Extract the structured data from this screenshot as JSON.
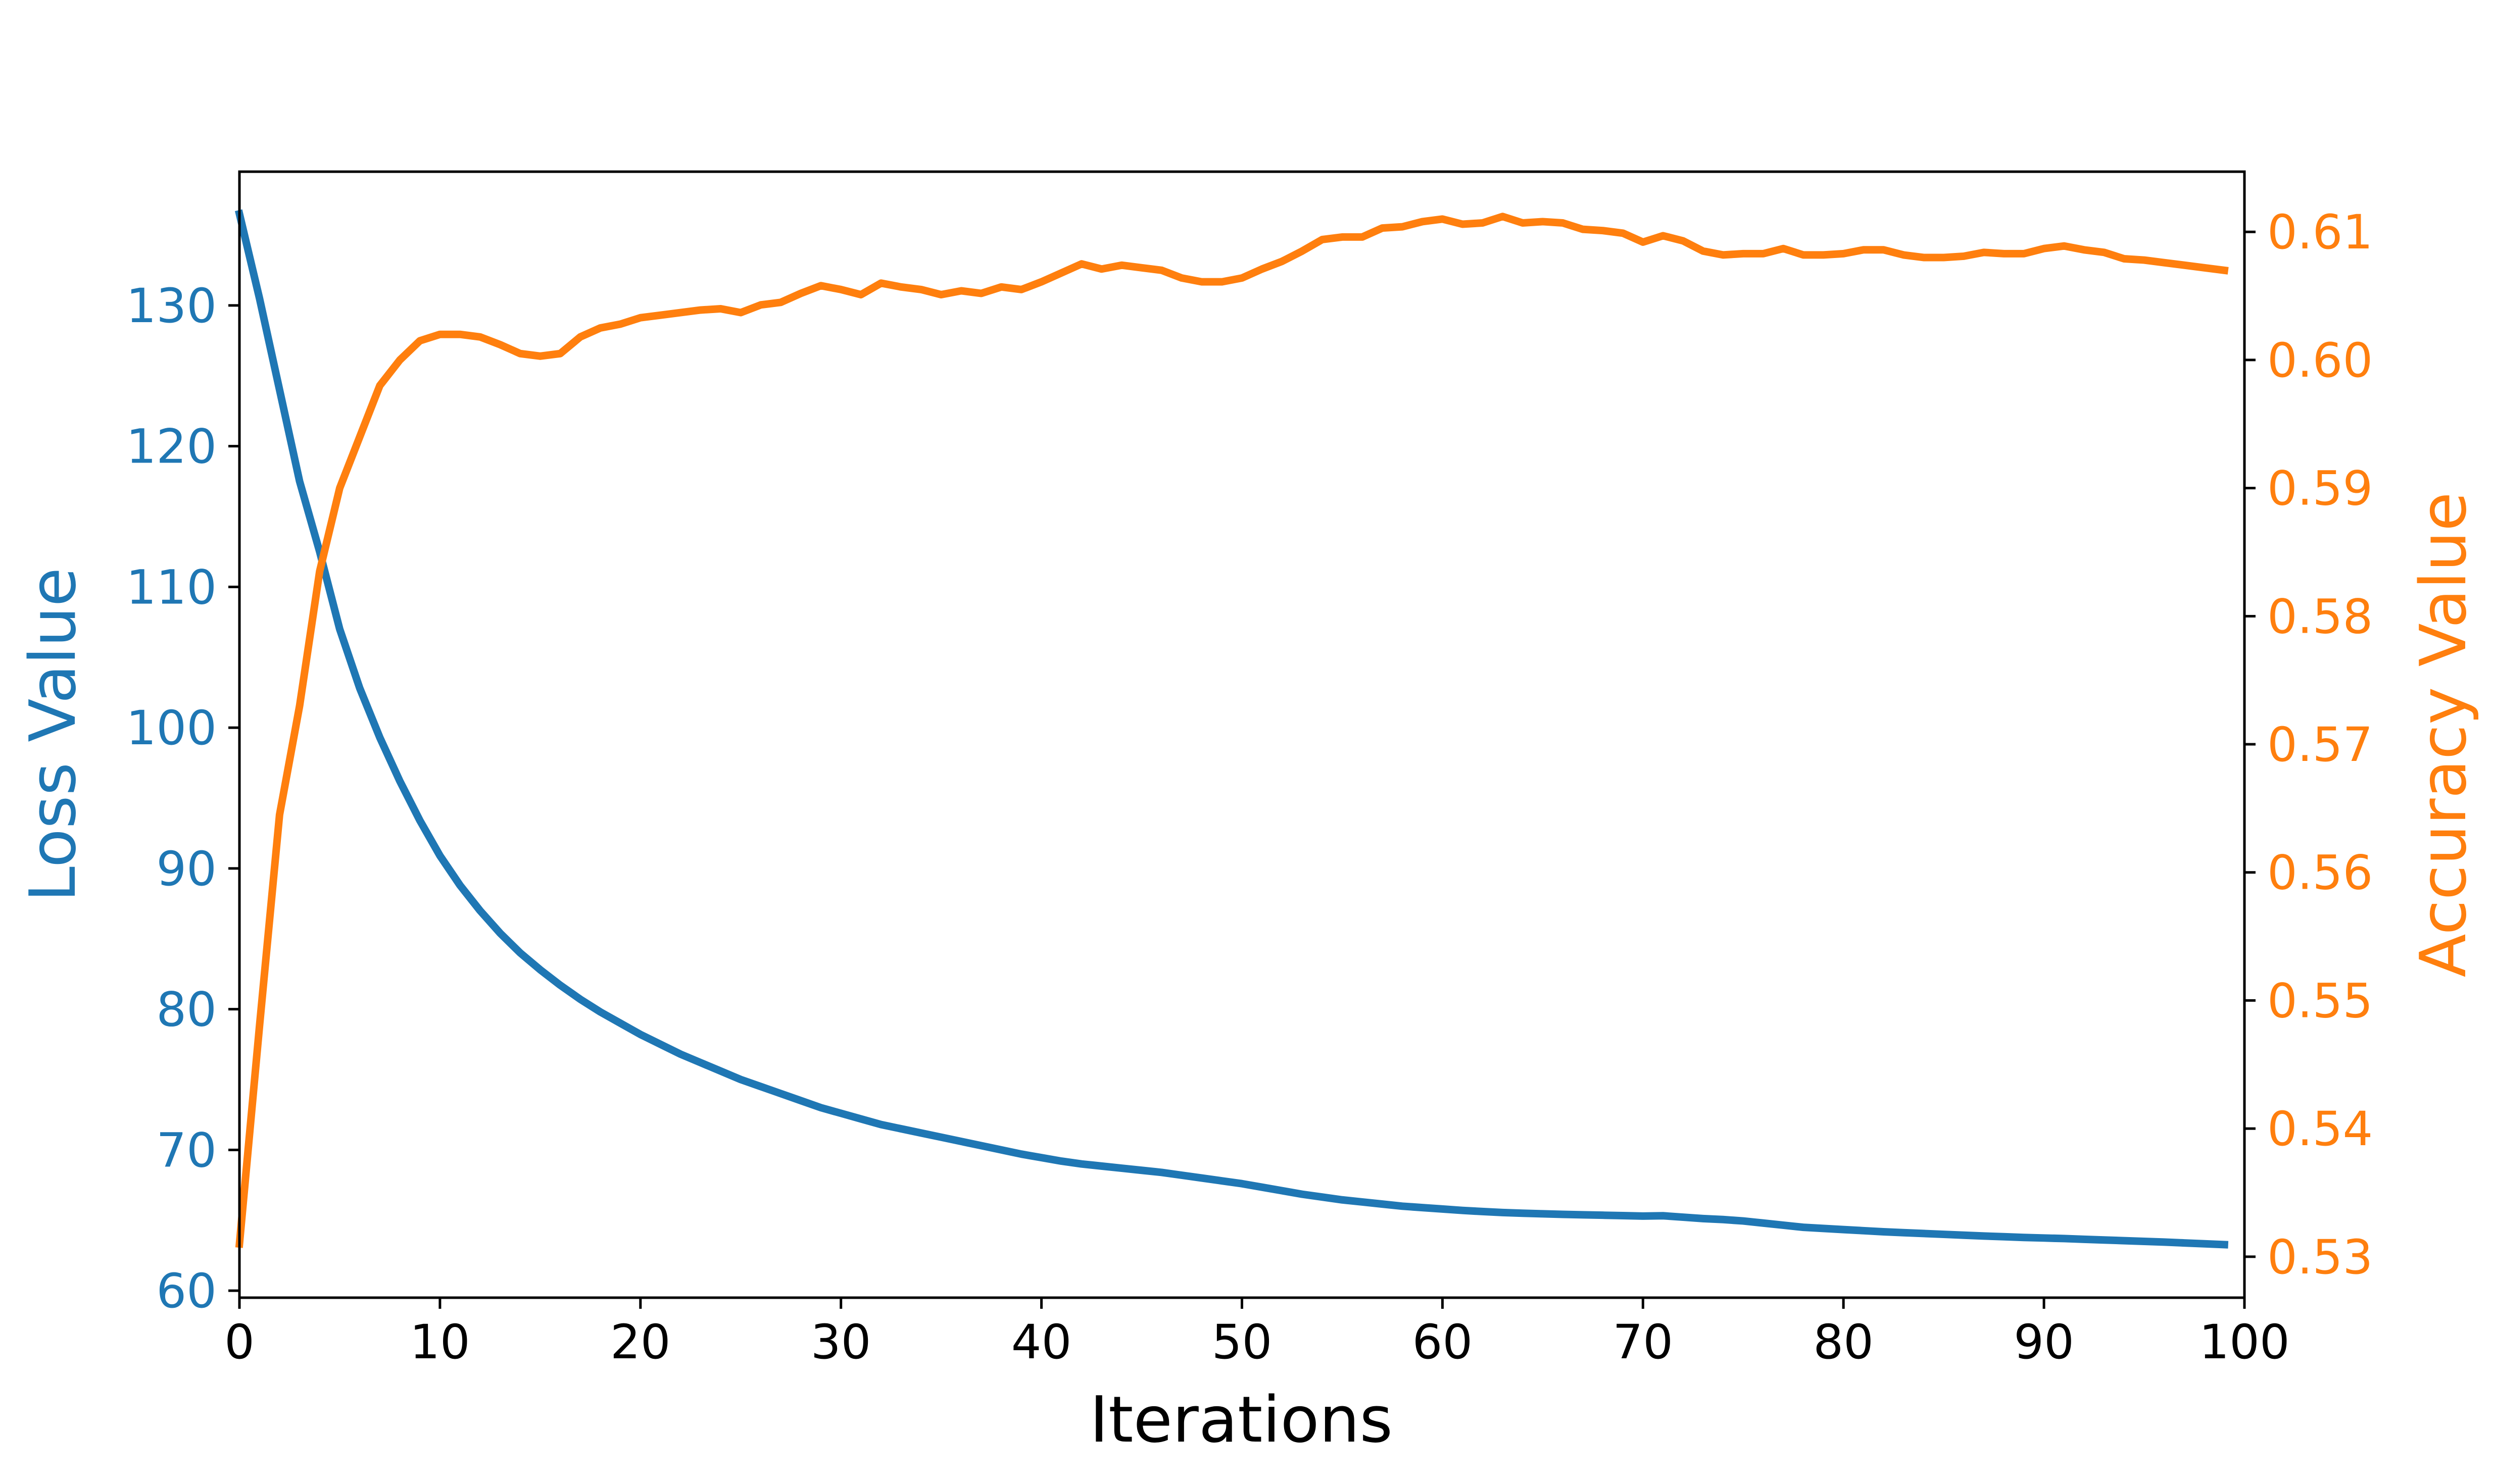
{
  "chart_data": {
    "type": "line",
    "title": "",
    "xlabel": "Iterations",
    "ylabel_left": "Loss Value",
    "ylabel_right": "Accuracy Value",
    "xlim": [
      0,
      100
    ],
    "ylim_left": [
      59.5,
      139.5
    ],
    "ylim_right": [
      0.5268,
      0.6147
    ],
    "x_ticks": [
      0,
      10,
      20,
      30,
      40,
      50,
      60,
      70,
      80,
      90,
      100
    ],
    "y_ticks_left": [
      60,
      70,
      80,
      90,
      100,
      110,
      120,
      130
    ],
    "y_ticks_right": [
      0.53,
      0.54,
      0.55,
      0.56,
      0.57,
      0.58,
      0.59,
      0.6,
      0.61
    ],
    "y_tick_labels_right": [
      "0.53",
      "0.54",
      "0.55",
      "0.56",
      "0.57",
      "0.58",
      "0.59",
      "0.60",
      "0.61"
    ],
    "grid": false,
    "legend": null,
    "colors": {
      "loss": "#1f77b4",
      "accuracy": "#ff7f0e",
      "axis": "#000000"
    },
    "series": [
      {
        "axis": "left",
        "color": "#1f77b4",
        "x": [
          0,
          1,
          2,
          3,
          4,
          5,
          6,
          7,
          8,
          9,
          10,
          11,
          12,
          13,
          14,
          15,
          16,
          17,
          18,
          19,
          20,
          21,
          22,
          23,
          24,
          25,
          26,
          27,
          28,
          29,
          30,
          31,
          32,
          33,
          34,
          35,
          36,
          37,
          38,
          39,
          40,
          41,
          42,
          43,
          44,
          45,
          46,
          47,
          48,
          49,
          50,
          51,
          52,
          53,
          54,
          55,
          56,
          57,
          58,
          59,
          60,
          61,
          62,
          63,
          64,
          65,
          66,
          67,
          68,
          69,
          70,
          71,
          72,
          73,
          74,
          75,
          76,
          77,
          78,
          79,
          80,
          81,
          82,
          83,
          84,
          85,
          86,
          87,
          88,
          89,
          90,
          91,
          92,
          93,
          94,
          95,
          96,
          97,
          98,
          99
        ],
        "values": [
          136.5,
          130.5,
          124.0,
          117.5,
          112.5,
          107.0,
          102.8,
          99.3,
          96.2,
          93.4,
          90.9,
          88.8,
          87.0,
          85.4,
          84.0,
          82.8,
          81.7,
          80.7,
          79.8,
          79.0,
          78.2,
          77.5,
          76.8,
          76.2,
          75.6,
          75.0,
          74.5,
          74.0,
          73.5,
          73.0,
          72.6,
          72.2,
          71.8,
          71.5,
          71.2,
          70.9,
          70.6,
          70.3,
          70.0,
          69.7,
          69.45,
          69.2,
          69.0,
          68.85,
          68.7,
          68.55,
          68.4,
          68.2,
          68.0,
          67.8,
          67.6,
          67.35,
          67.1,
          66.85,
          66.65,
          66.45,
          66.3,
          66.15,
          66.0,
          65.9,
          65.8,
          65.7,
          65.62,
          65.55,
          65.5,
          65.46,
          65.42,
          65.39,
          65.36,
          65.33,
          65.3,
          65.32,
          65.22,
          65.12,
          65.05,
          64.95,
          64.8,
          64.65,
          64.5,
          64.42,
          64.34,
          64.26,
          64.18,
          64.12,
          64.06,
          64.0,
          63.94,
          63.88,
          63.83,
          63.78,
          63.74,
          63.7,
          63.65,
          63.6,
          63.55,
          63.5,
          63.45,
          63.39,
          63.33,
          63.27
        ]
      },
      {
        "axis": "right",
        "color": "#ff7f0e",
        "x": [
          0,
          1,
          2,
          3,
          4,
          5,
          6,
          7,
          8,
          9,
          10,
          11,
          12,
          13,
          14,
          15,
          16,
          17,
          18,
          19,
          20,
          21,
          22,
          23,
          24,
          25,
          26,
          27,
          28,
          29,
          30,
          31,
          32,
          33,
          34,
          35,
          36,
          37,
          38,
          39,
          40,
          41,
          42,
          43,
          44,
          45,
          46,
          47,
          48,
          49,
          50,
          51,
          52,
          53,
          54,
          55,
          56,
          57,
          58,
          59,
          60,
          61,
          62,
          63,
          64,
          65,
          66,
          67,
          68,
          69,
          70,
          71,
          72,
          73,
          74,
          75,
          76,
          77,
          78,
          79,
          80,
          81,
          82,
          83,
          84,
          85,
          86,
          87,
          88,
          89,
          90,
          91,
          92,
          93,
          94,
          95,
          96,
          97,
          98,
          99
        ],
        "values": [
          0.531,
          0.548,
          0.5645,
          0.573,
          0.5835,
          0.59,
          0.594,
          0.598,
          0.6,
          0.6015,
          0.602,
          0.602,
          0.6018,
          0.6012,
          0.6005,
          0.6003,
          0.6005,
          0.6018,
          0.6025,
          0.6028,
          0.6033,
          0.6035,
          0.6037,
          0.6039,
          0.604,
          0.6037,
          0.6043,
          0.6045,
          0.6052,
          0.6058,
          0.6055,
          0.6051,
          0.606,
          0.6057,
          0.6055,
          0.6051,
          0.6054,
          0.6052,
          0.6057,
          0.6055,
          0.6061,
          0.6068,
          0.6075,
          0.6071,
          0.6074,
          0.6072,
          0.607,
          0.6064,
          0.6061,
          0.6061,
          0.6064,
          0.6071,
          0.6077,
          0.6085,
          0.6094,
          0.6096,
          0.6096,
          0.6103,
          0.6104,
          0.6108,
          0.611,
          0.6106,
          0.6107,
          0.6112,
          0.6107,
          0.6108,
          0.6107,
          0.6102,
          0.6101,
          0.6099,
          0.6092,
          0.6097,
          0.6093,
          0.6085,
          0.6082,
          0.6083,
          0.6083,
          0.6087,
          0.6082,
          0.6082,
          0.6083,
          0.6086,
          0.6086,
          0.6082,
          0.608,
          0.608,
          0.6081,
          0.6084,
          0.6083,
          0.6083,
          0.6087,
          0.6089,
          0.6086,
          0.6084,
          0.6079,
          0.6078,
          0.6076,
          0.6074,
          0.6072,
          0.607
        ]
      }
    ]
  }
}
